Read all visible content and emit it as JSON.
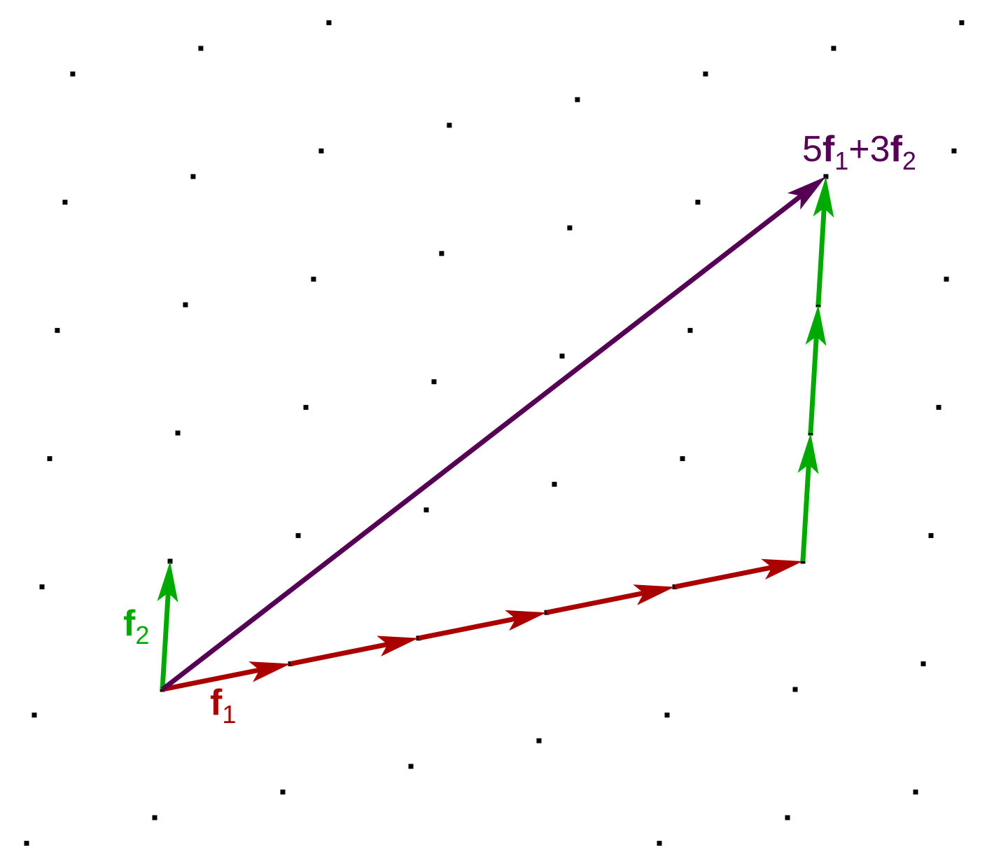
{
  "diagram": {
    "basis": {
      "f1": [
        5,
        1
      ],
      "f2": [
        0.3,
        5
      ]
    },
    "coefficients": {
      "a": 5,
      "b": 3
    },
    "colors": {
      "f1": "#aa0000",
      "f2": "#00aa00",
      "sum": "#550055",
      "lattice_point": "#000000"
    },
    "labels": {
      "f1": {
        "letter": "f",
        "sub": "1"
      },
      "f2": {
        "letter": "f",
        "sub": "2"
      },
      "sum": {
        "a": "5",
        "f": "f",
        "sub1": "1",
        "plus_b": "+3",
        "f2": "f",
        "sub2": "2"
      }
    }
  }
}
